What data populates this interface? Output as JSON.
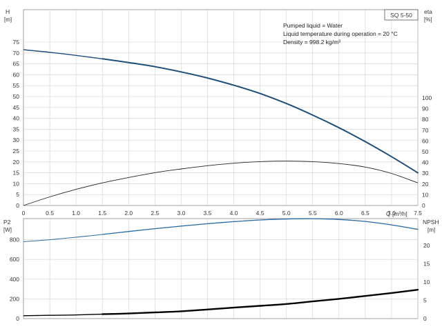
{
  "chart_data": [
    {
      "type": "line",
      "panel": "upper",
      "model_label": "SQ 5-50",
      "annotations": [
        "Pumped liquid = Water",
        "Liquid temperature during operation = 20 °C",
        "Density = 998.2 kg/m³"
      ],
      "xlabel": "Q [m³/h]",
      "xlim": [
        0,
        7.5
      ],
      "x_ticks": [
        "0",
        "0.5",
        "1.0",
        "1.5",
        "2.0",
        "2.5",
        "3.0",
        "3.5",
        "4.0",
        "4.5",
        "5.0",
        "5.5",
        "6.0",
        "6.5",
        "7.0",
        "7.5"
      ],
      "left_axis": {
        "label": "H",
        "unit": "[m]",
        "ylim": [
          0,
          75
        ],
        "ticks": [
          "0",
          "5",
          "10",
          "15",
          "20",
          "25",
          "30",
          "35",
          "40",
          "45",
          "50",
          "55",
          "60",
          "65",
          "70",
          "75"
        ]
      },
      "right_axis": {
        "label": "eta",
        "unit": "[%]",
        "ylim": [
          0,
          100
        ],
        "ticks": [
          "0",
          "10",
          "20",
          "30",
          "40",
          "50",
          "60",
          "70",
          "80",
          "90",
          "100"
        ]
      },
      "grid": true,
      "series": [
        {
          "axis": "left",
          "color": "#1f4e79",
          "highlight_from_x": 1.5,
          "x": [
            0,
            0.5,
            1.0,
            1.5,
            2.0,
            2.5,
            3.0,
            3.5,
            4.0,
            4.5,
            5.0,
            5.5,
            6.0,
            6.5,
            7.0,
            7.5
          ],
          "values": [
            71.5,
            70.3,
            68.9,
            67.3,
            65.6,
            63.7,
            61.3,
            58.5,
            55.2,
            51.4,
            46.8,
            41.5,
            35.7,
            29.3,
            22.4,
            15.0
          ]
        },
        {
          "axis": "right",
          "color": "#222222",
          "x": [
            0,
            0.5,
            1.0,
            1.5,
            2.0,
            2.5,
            3.0,
            3.5,
            4.0,
            4.5,
            5.0,
            5.5,
            6.0,
            6.5,
            7.0,
            7.5
          ],
          "values": [
            0,
            8,
            15,
            21,
            26,
            30.5,
            34,
            37,
            39.3,
            40.8,
            41.3,
            40.8,
            39,
            35.7,
            29.8,
            21
          ]
        }
      ]
    },
    {
      "type": "line",
      "panel": "lower",
      "xlim": [
        0,
        7.5
      ],
      "left_axis": {
        "label": "P2",
        "unit": "[W]",
        "ylim": [
          0,
          1000
        ],
        "ticks": [
          "0",
          "200",
          "400",
          "600",
          "800"
        ]
      },
      "right_axis": {
        "label": "NPSH",
        "unit": "[m]",
        "ylim": [
          0,
          27
        ],
        "ticks": [
          "0",
          "5",
          "10",
          "15",
          "20"
        ]
      },
      "grid": true,
      "series": [
        {
          "axis": "left",
          "color": "#2e6da4",
          "highlight_from_x": 1.5,
          "x": [
            0,
            0.5,
            1.0,
            1.5,
            2.0,
            2.5,
            3.0,
            3.5,
            4.0,
            4.5,
            5.0,
            5.5,
            6.0,
            6.5,
            7.0,
            7.5
          ],
          "values": [
            780,
            800,
            825,
            853,
            883,
            912,
            938,
            962,
            983,
            1000,
            1010,
            1013,
            1005,
            985,
            950,
            905
          ]
        },
        {
          "axis": "right",
          "color": "#000000",
          "highlight_from_x": 1.5,
          "x": [
            0,
            0.5,
            1.0,
            1.5,
            2.0,
            2.5,
            3.0,
            3.5,
            4.0,
            4.5,
            5.0,
            5.5,
            6.0,
            6.5,
            7.0,
            7.5
          ],
          "values": [
            0.8,
            0.9,
            1.0,
            1.2,
            1.4,
            1.7,
            2.0,
            2.5,
            3.0,
            3.5,
            4.0,
            4.7,
            5.4,
            6.2,
            7.0,
            7.9
          ]
        }
      ]
    }
  ]
}
